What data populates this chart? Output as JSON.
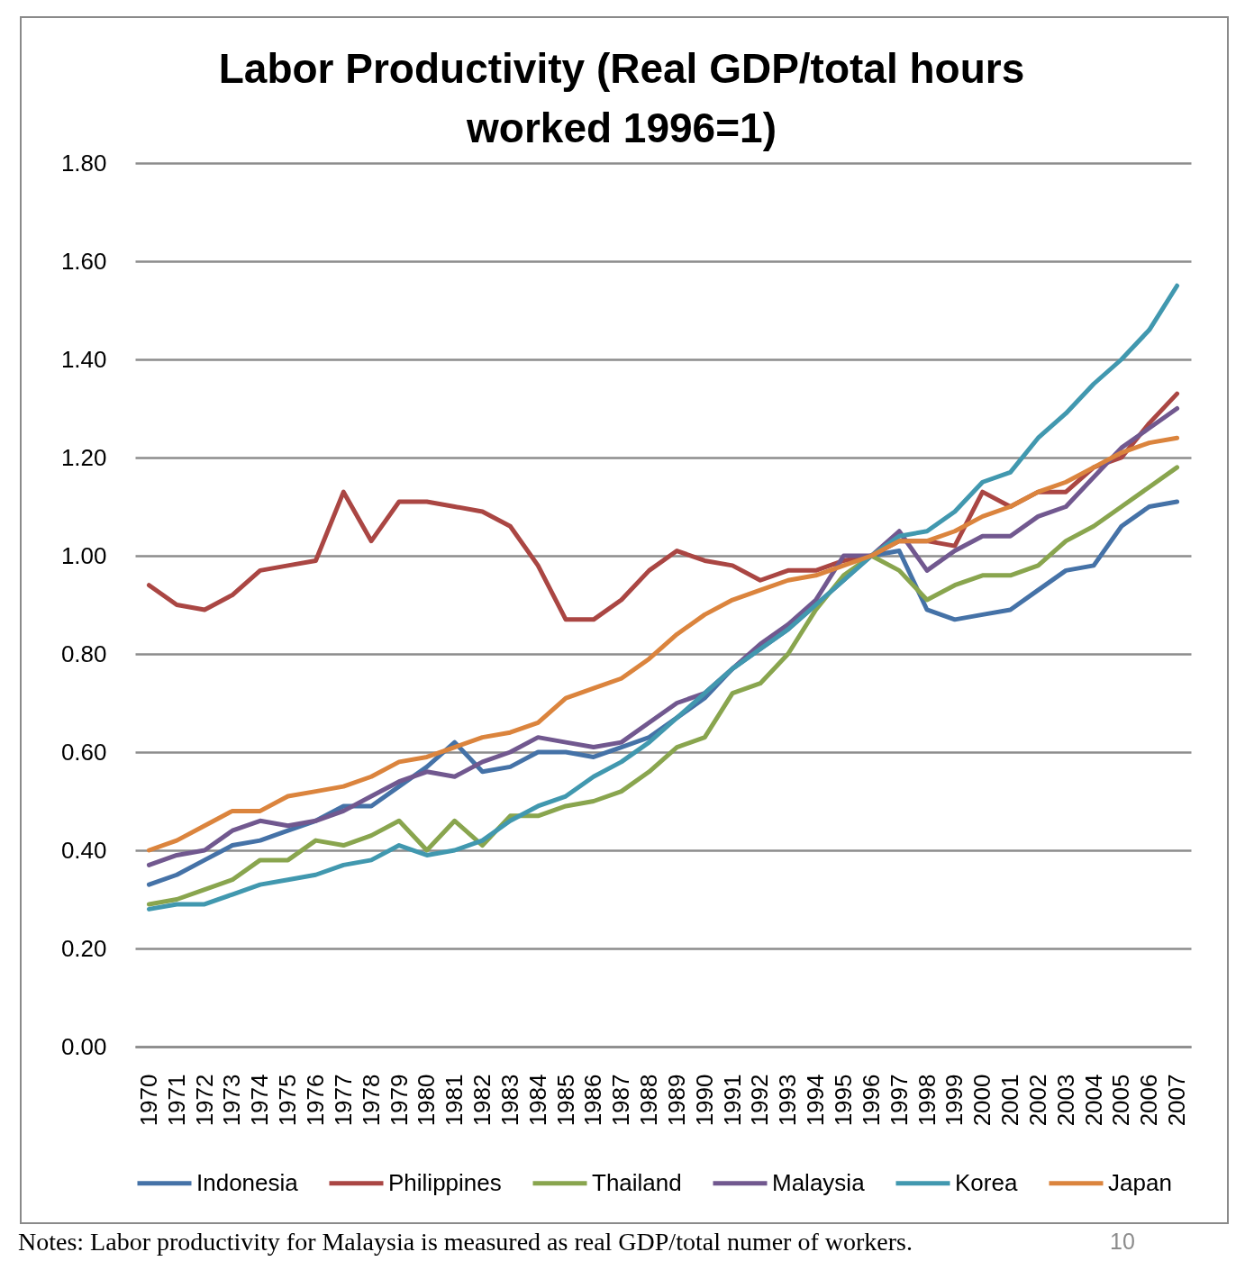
{
  "chart_data": {
    "type": "line",
    "title": "Labor Productivity (Real GDP/total hours worked 1996=1)",
    "categories": [
      "1970",
      "1971",
      "1972",
      "1973",
      "1974",
      "1975",
      "1976",
      "1977",
      "1978",
      "1979",
      "1980",
      "1981",
      "1982",
      "1983",
      "1984",
      "1985",
      "1986",
      "1987",
      "1988",
      "1989",
      "1990",
      "1991",
      "1992",
      "1993",
      "1994",
      "1995",
      "1996",
      "1997",
      "1998",
      "1999",
      "2000",
      "2001",
      "2002",
      "2003",
      "2004",
      "2005",
      "2006",
      "2007"
    ],
    "series": [
      {
        "name": "Indonesia",
        "color": "#4572a7",
        "values": [
          0.33,
          0.35,
          0.38,
          0.41,
          0.42,
          0.44,
          0.46,
          0.49,
          0.49,
          0.53,
          0.57,
          0.62,
          0.56,
          0.57,
          0.6,
          0.6,
          0.59,
          0.61,
          0.63,
          0.67,
          0.71,
          0.77,
          0.81,
          0.85,
          0.9,
          0.95,
          1.0,
          1.01,
          0.89,
          0.87,
          0.88,
          0.89,
          0.93,
          0.97,
          0.98,
          1.06,
          1.1,
          1.11
        ]
      },
      {
        "name": "Philippines",
        "color": "#aa4643",
        "values": [
          0.94,
          0.9,
          0.89,
          0.92,
          0.97,
          0.98,
          0.99,
          1.13,
          1.03,
          1.11,
          1.11,
          1.1,
          1.09,
          1.06,
          0.98,
          0.87,
          0.87,
          0.91,
          0.97,
          1.01,
          0.99,
          0.98,
          0.95,
          0.97,
          0.97,
          0.99,
          1.0,
          1.03,
          1.03,
          1.02,
          1.13,
          1.1,
          1.13,
          1.13,
          1.18,
          1.2,
          1.27,
          1.33
        ]
      },
      {
        "name": "Thailand",
        "color": "#89a54e",
        "values": [
          0.29,
          0.3,
          0.32,
          0.34,
          0.38,
          0.38,
          0.42,
          0.41,
          0.43,
          0.46,
          0.4,
          0.46,
          0.41,
          0.47,
          0.47,
          0.49,
          0.5,
          0.52,
          0.56,
          0.61,
          0.63,
          0.72,
          0.74,
          0.8,
          0.89,
          0.96,
          1.0,
          0.97,
          0.91,
          0.94,
          0.96,
          0.96,
          0.98,
          1.03,
          1.06,
          1.1,
          1.14,
          1.18
        ]
      },
      {
        "name": "Malaysia",
        "color": "#71588f",
        "values": [
          0.37,
          0.39,
          0.4,
          0.44,
          0.46,
          0.45,
          0.46,
          0.48,
          0.51,
          0.54,
          0.56,
          0.55,
          0.58,
          0.6,
          0.63,
          0.62,
          0.61,
          0.62,
          0.66,
          0.7,
          0.72,
          0.77,
          0.82,
          0.86,
          0.91,
          1.0,
          1.0,
          1.05,
          0.97,
          1.01,
          1.04,
          1.04,
          1.08,
          1.1,
          1.16,
          1.22,
          1.26,
          1.3
        ]
      },
      {
        "name": "Korea",
        "color": "#4198af",
        "values": [
          0.28,
          0.29,
          0.29,
          0.31,
          0.33,
          0.34,
          0.35,
          0.37,
          0.38,
          0.41,
          0.39,
          0.4,
          0.42,
          0.46,
          0.49,
          0.51,
          0.55,
          0.58,
          0.62,
          0.67,
          0.72,
          0.77,
          0.81,
          0.85,
          0.9,
          0.95,
          1.0,
          1.04,
          1.05,
          1.09,
          1.15,
          1.17,
          1.24,
          1.29,
          1.35,
          1.4,
          1.46,
          1.55
        ]
      },
      {
        "name": "Japan",
        "color": "#db843d",
        "values": [
          0.4,
          0.42,
          0.45,
          0.48,
          0.48,
          0.51,
          0.52,
          0.53,
          0.55,
          0.58,
          0.59,
          0.61,
          0.63,
          0.64,
          0.66,
          0.71,
          0.73,
          0.75,
          0.79,
          0.84,
          0.88,
          0.91,
          0.93,
          0.95,
          0.96,
          0.98,
          1.0,
          1.03,
          1.03,
          1.05,
          1.08,
          1.1,
          1.13,
          1.15,
          1.18,
          1.21,
          1.23,
          1.24
        ]
      }
    ],
    "ylim": [
      0,
      1.8
    ],
    "yticks": [
      {
        "value": 0,
        "label": "0.00"
      },
      {
        "value": 0.2,
        "label": "0.20"
      },
      {
        "value": 0.4,
        "label": "0.40"
      },
      {
        "value": 0.6,
        "label": "0.60"
      },
      {
        "value": 0.8,
        "label": "0.80"
      },
      {
        "value": 1,
        "label": "1.00"
      },
      {
        "value": 1.2,
        "label": "1.20"
      },
      {
        "value": 1.4,
        "label": "1.40"
      },
      {
        "value": 1.6,
        "label": "1.60"
      },
      {
        "value": 1.8,
        "label": "1.80"
      }
    ],
    "grid": "y",
    "legend": "bottom",
    "line_style": "solid",
    "annotations": [
      "Notes: Labor productivity for Malaysia is measured as real GDP/total numer of workers.",
      "10"
    ]
  }
}
